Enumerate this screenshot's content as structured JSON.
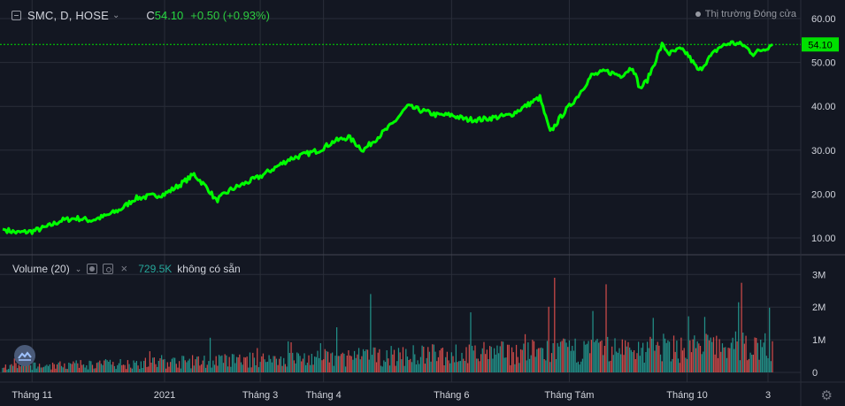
{
  "header": {
    "symbol": "SMC, D, HOSE",
    "ohlc_prefix": "C",
    "price": "54.10",
    "change": "+0.50 (+0.93%)",
    "status": "Thị trường Đóng cửa"
  },
  "volume_header": {
    "label": "Volume (20)",
    "value": "729.5K",
    "note": "không có sẵn"
  },
  "colors": {
    "background": "#131722",
    "line": "#00ff00",
    "vol_up": "#26a69a",
    "vol_down": "#ef5350",
    "grid": "#2a2e39"
  },
  "chart_data": {
    "type": "line",
    "price_axis": {
      "ticks": [
        "60.00",
        "50.00",
        "40.00",
        "30.00",
        "20.00",
        "10.00"
      ],
      "tick_values": [
        60,
        50,
        40,
        30,
        20,
        10
      ],
      "last_label": "54.10",
      "last_value": 54.1
    },
    "volume_axis": {
      "ticks": [
        "3M",
        "2M",
        "1M",
        "0"
      ],
      "tick_values": [
        3000000,
        2000000,
        1000000,
        0
      ]
    },
    "x_ticks": [
      {
        "label": "Tháng 11",
        "index": 20
      },
      {
        "label": "2021",
        "index": 110
      },
      {
        "label": "Tháng 3",
        "index": 175
      },
      {
        "label": "Tháng 4",
        "index": 218
      },
      {
        "label": "Tháng 6",
        "index": 305
      },
      {
        "label": "Tháng Tám",
        "index": 385
      },
      {
        "label": "Tháng 10",
        "index": 465
      },
      {
        "label": "3",
        "index": 520
      }
    ],
    "price_series": {
      "anchors": [
        [
          0,
          12
        ],
        [
          10,
          11.2
        ],
        [
          20,
          11.5
        ],
        [
          30,
          12.5
        ],
        [
          40,
          14
        ],
        [
          50,
          14.5
        ],
        [
          60,
          14
        ],
        [
          70,
          15
        ],
        [
          80,
          16.5
        ],
        [
          90,
          19
        ],
        [
          100,
          19.5
        ],
        [
          110,
          20
        ],
        [
          120,
          22
        ],
        [
          130,
          24.5
        ],
        [
          140,
          21
        ],
        [
          145,
          18.5
        ],
        [
          155,
          21
        ],
        [
          165,
          22.5
        ],
        [
          175,
          24
        ],
        [
          185,
          26
        ],
        [
          195,
          28
        ],
        [
          205,
          29
        ],
        [
          215,
          30
        ],
        [
          225,
          32
        ],
        [
          235,
          33
        ],
        [
          245,
          30
        ],
        [
          255,
          33
        ],
        [
          265,
          36
        ],
        [
          275,
          40
        ],
        [
          285,
          39
        ],
        [
          295,
          38
        ],
        [
          305,
          38
        ],
        [
          315,
          37
        ],
        [
          325,
          37
        ],
        [
          335,
          37.5
        ],
        [
          345,
          38
        ],
        [
          355,
          40
        ],
        [
          365,
          42
        ],
        [
          372,
          34
        ],
        [
          380,
          38
        ],
        [
          390,
          42
        ],
        [
          400,
          47
        ],
        [
          410,
          48
        ],
        [
          420,
          47
        ],
        [
          428,
          49
        ],
        [
          433,
          44
        ],
        [
          438,
          46
        ],
        [
          443,
          50
        ],
        [
          448,
          54
        ],
        [
          453,
          52
        ],
        [
          460,
          53
        ],
        [
          465,
          52
        ],
        [
          473,
          48
        ],
        [
          480,
          51
        ],
        [
          487,
          53.5
        ],
        [
          495,
          54.5
        ],
        [
          503,
          54
        ],
        [
          510,
          52
        ],
        [
          520,
          53.5
        ],
        [
          523,
          54.1
        ]
      ],
      "last": 54.1
    },
    "volume_series": {
      "count": 524,
      "approx_max": 2900000,
      "peaks": [
        {
          "index": 250,
          "value": 2400000,
          "color": "up"
        },
        {
          "index": 375,
          "value": 2900000,
          "color": "down"
        },
        {
          "index": 410,
          "value": 2700000,
          "color": "down"
        },
        {
          "index": 500,
          "value": 2150000,
          "color": "up"
        }
      ]
    }
  }
}
